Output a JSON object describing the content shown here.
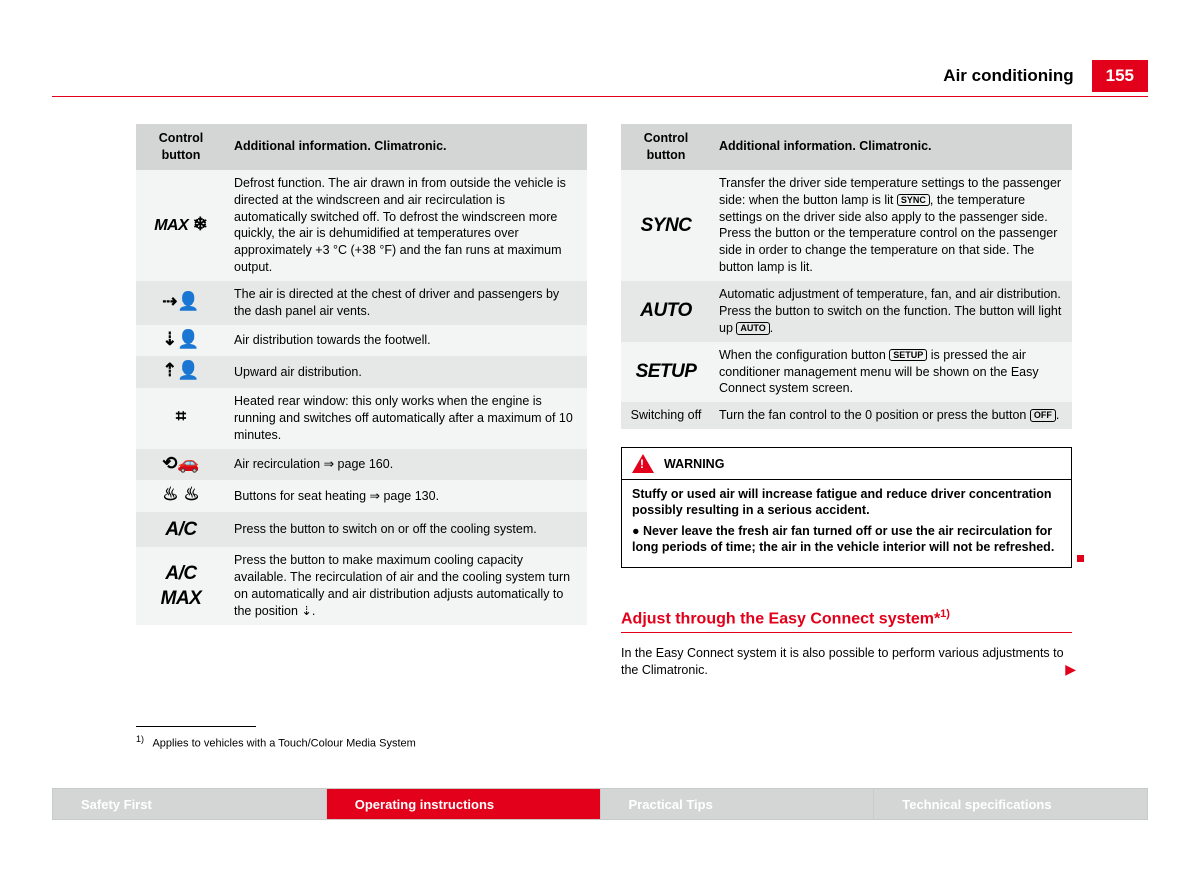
{
  "header": {
    "section": "Air conditioning",
    "page": "155"
  },
  "table_headers": {
    "col1": "Control button",
    "col2": "Additional information. Climatronic."
  },
  "left_rows": [
    {
      "btn_html": "<span class='max-label'>MAX</span> <span class='icon'>❄</span>",
      "text": "Defrost function. The air drawn in from outside the vehicle is directed at the windscreen and air recirculation is automatically switched off. To defrost the windscreen more quickly, the air is dehumidified at temperatures over approximately +3 °C (+38 °F) and the fan runs at maximum output."
    },
    {
      "btn_html": "<span class='icon'>⇢👤</span>",
      "text": "The air is directed at the chest of driver and passengers by the dash panel air vents."
    },
    {
      "btn_html": "<span class='icon'>⇣👤</span>",
      "text": "Air distribution towards the footwell."
    },
    {
      "btn_html": "<span class='icon'>⇡👤</span>",
      "text": "Upward air distribution."
    },
    {
      "btn_html": "<span class='icon'>⌗</span>",
      "text": "Heated rear window: this only works when the engine is running and switches off automatically after a maximum of 10 minutes."
    },
    {
      "btn_html": "<span class='icon'>⟲🚗</span>",
      "text": "Air recirculation ⇒ page 160."
    },
    {
      "btn_html": "<span class='icon'>♨ ♨</span>",
      "text": "Buttons for seat heating ⇒ page 130."
    },
    {
      "btn_html": "<span class='ac-label'>A/C</span>",
      "text": "Press the button to switch on or off the cooling system."
    },
    {
      "btn_html": "<span class='ac-label'>A/C MAX</span>",
      "text": "Press the button to make maximum cooling capacity available. The recirculation of air and the cooling system turn on automatically and air distribution adjusts automatically to the position ⇣."
    }
  ],
  "right_rows": [
    {
      "btn_html": "<span class='sync-label'>SYNC</span>",
      "text": "Transfer the driver side temperature settings to the passenger side: when the button lamp is lit <span class='keycap'>SYNC</span>, the temperature settings on the driver side also apply to the passenger side. Press the button or the temperature control on the passenger side in order to change the temperature on that side. The button lamp is lit."
    },
    {
      "btn_html": "<span class='auto-label'>AUTO</span>",
      "text": "Automatic adjustment of temperature, fan, and air distribution. Press the button to switch on the function. The button will light up <span class='keycap'>AUTO</span>."
    },
    {
      "btn_html": "<span class='setup-label'>SETUP</span>",
      "text": "When the configuration button <span class='keycap'>SETUP</span> is pressed the air conditioner management menu will be shown on the Easy Connect system screen."
    },
    {
      "btn_html": "Switching off",
      "small": true,
      "text": "Turn the fan control to the 0 position or press the button <span class='keycap'>OFF</span>."
    }
  ],
  "warning": {
    "title": "WARNING",
    "p1": "Stuffy or used air will increase fatigue and reduce driver concentration possibly resulting in a serious accident.",
    "p2": "●   Never leave the fresh air fan turned off or use the air recirculation for long periods of time; the air in the vehicle interior will not be refreshed."
  },
  "subheading": "Adjust through the Easy Connect system*",
  "subheading_sup": "1)",
  "body_text": "In the Easy Connect system it is also possible to perform various adjustments to the Climatronic.",
  "footnote": {
    "sup": "1)",
    "text": "Applies to vehicles with a Touch/Colour Media System"
  },
  "tabs": [
    {
      "label": "Safety First",
      "active": false
    },
    {
      "label": "Operating instructions",
      "active": true
    },
    {
      "label": "Practical Tips",
      "active": false
    },
    {
      "label": "Technical specifications",
      "active": false
    }
  ]
}
